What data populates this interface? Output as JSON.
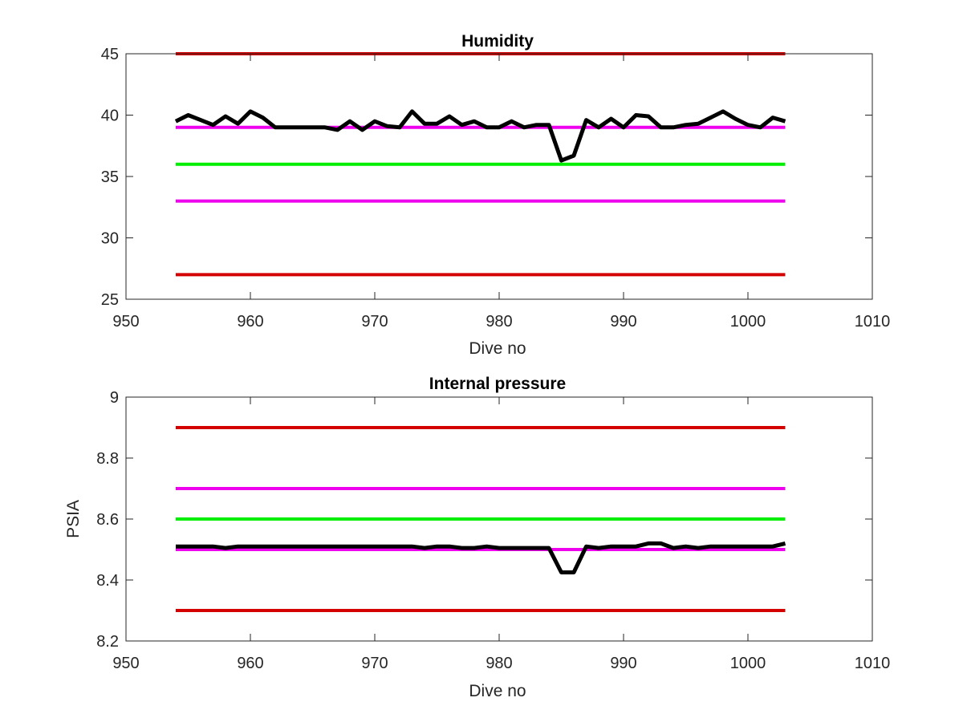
{
  "chart_data": [
    {
      "type": "line",
      "title": "Humidity",
      "xlabel": "Dive no",
      "ylabel": "",
      "xlim": [
        950,
        1010
      ],
      "ylim": [
        25,
        45
      ],
      "xticks": [
        "950",
        "960",
        "970",
        "980",
        "990",
        "1000",
        "1010"
      ],
      "yticks": [
        "25",
        "30",
        "35",
        "40",
        "45"
      ],
      "grid": false,
      "series": [
        {
          "color": "#000000",
          "role": "measurement",
          "x": [
            954,
            955,
            956,
            957,
            958,
            959,
            960,
            961,
            962,
            963,
            964,
            965,
            966,
            967,
            968,
            969,
            970,
            971,
            972,
            973,
            974,
            975,
            976,
            977,
            978,
            979,
            980,
            981,
            982,
            983,
            984,
            985,
            986,
            987,
            988,
            989,
            990,
            991,
            992,
            993,
            994,
            995,
            996,
            997,
            998,
            999,
            1000,
            1001,
            1002,
            1003
          ],
          "y": [
            39.5,
            40.0,
            39.6,
            39.2,
            39.9,
            39.3,
            40.3,
            39.8,
            39.0,
            39.0,
            39.0,
            39.0,
            39.0,
            38.8,
            39.5,
            38.8,
            39.5,
            39.1,
            39.0,
            40.3,
            39.3,
            39.3,
            39.9,
            39.2,
            39.5,
            39.0,
            39.0,
            39.5,
            39.0,
            39.2,
            39.2,
            36.3,
            36.7,
            39.6,
            39.0,
            39.7,
            39.0,
            40.0,
            39.9,
            39.0,
            39.0,
            39.2,
            39.3,
            39.8,
            40.3,
            39.7,
            39.2,
            39.0,
            39.8,
            39.5
          ]
        },
        {
          "color": "#d40000",
          "role": "limit",
          "x": [
            954,
            1003
          ],
          "y": [
            45,
            45
          ]
        },
        {
          "color": "#ee00ee",
          "role": "limit",
          "x": [
            954,
            1003
          ],
          "y": [
            39,
            39
          ]
        },
        {
          "color": "#00ee00",
          "role": "limit",
          "x": [
            954,
            1003
          ],
          "y": [
            36,
            36
          ]
        },
        {
          "color": "#ee00ee",
          "role": "limit",
          "x": [
            954,
            1003
          ],
          "y": [
            33,
            33
          ]
        },
        {
          "color": "#d40000",
          "role": "limit",
          "x": [
            954,
            1003
          ],
          "y": [
            27,
            27
          ]
        }
      ]
    },
    {
      "type": "line",
      "title": "Internal pressure",
      "xlabel": "Dive no",
      "ylabel": "PSIA",
      "xlim": [
        950,
        1010
      ],
      "ylim": [
        8.2,
        9
      ],
      "xticks": [
        "950",
        "960",
        "970",
        "980",
        "990",
        "1000",
        "1010"
      ],
      "yticks": [
        "8.2",
        "8.4",
        "8.6",
        "8.8",
        "9"
      ],
      "grid": false,
      "series": [
        {
          "color": "#000000",
          "role": "measurement",
          "x": [
            954,
            955,
            956,
            957,
            958,
            959,
            960,
            961,
            962,
            963,
            964,
            965,
            966,
            967,
            968,
            969,
            970,
            971,
            972,
            973,
            974,
            975,
            976,
            977,
            978,
            979,
            980,
            981,
            982,
            983,
            984,
            985,
            986,
            987,
            988,
            989,
            990,
            991,
            992,
            993,
            994,
            995,
            996,
            997,
            998,
            999,
            1000,
            1001,
            1002,
            1003
          ],
          "y": [
            8.51,
            8.51,
            8.51,
            8.51,
            8.505,
            8.51,
            8.51,
            8.51,
            8.51,
            8.51,
            8.51,
            8.51,
            8.51,
            8.51,
            8.51,
            8.51,
            8.51,
            8.51,
            8.51,
            8.51,
            8.505,
            8.51,
            8.51,
            8.505,
            8.505,
            8.51,
            8.505,
            8.505,
            8.505,
            8.505,
            8.505,
            8.425,
            8.425,
            8.51,
            8.505,
            8.51,
            8.51,
            8.51,
            8.52,
            8.52,
            8.505,
            8.51,
            8.505,
            8.51,
            8.51,
            8.51,
            8.51,
            8.51,
            8.51,
            8.52
          ]
        },
        {
          "color": "#d40000",
          "role": "limit",
          "x": [
            954,
            1003
          ],
          "y": [
            8.9,
            8.9
          ]
        },
        {
          "color": "#ee00ee",
          "role": "limit",
          "x": [
            954,
            1003
          ],
          "y": [
            8.7,
            8.7
          ]
        },
        {
          "color": "#00ee00",
          "role": "limit",
          "x": [
            954,
            1003
          ],
          "y": [
            8.6,
            8.6
          ]
        },
        {
          "color": "#ee00ee",
          "role": "limit",
          "x": [
            954,
            1003
          ],
          "y": [
            8.5,
            8.5
          ]
        },
        {
          "color": "#d40000",
          "role": "limit",
          "x": [
            954,
            1003
          ],
          "y": [
            8.3,
            8.3
          ]
        }
      ]
    }
  ]
}
